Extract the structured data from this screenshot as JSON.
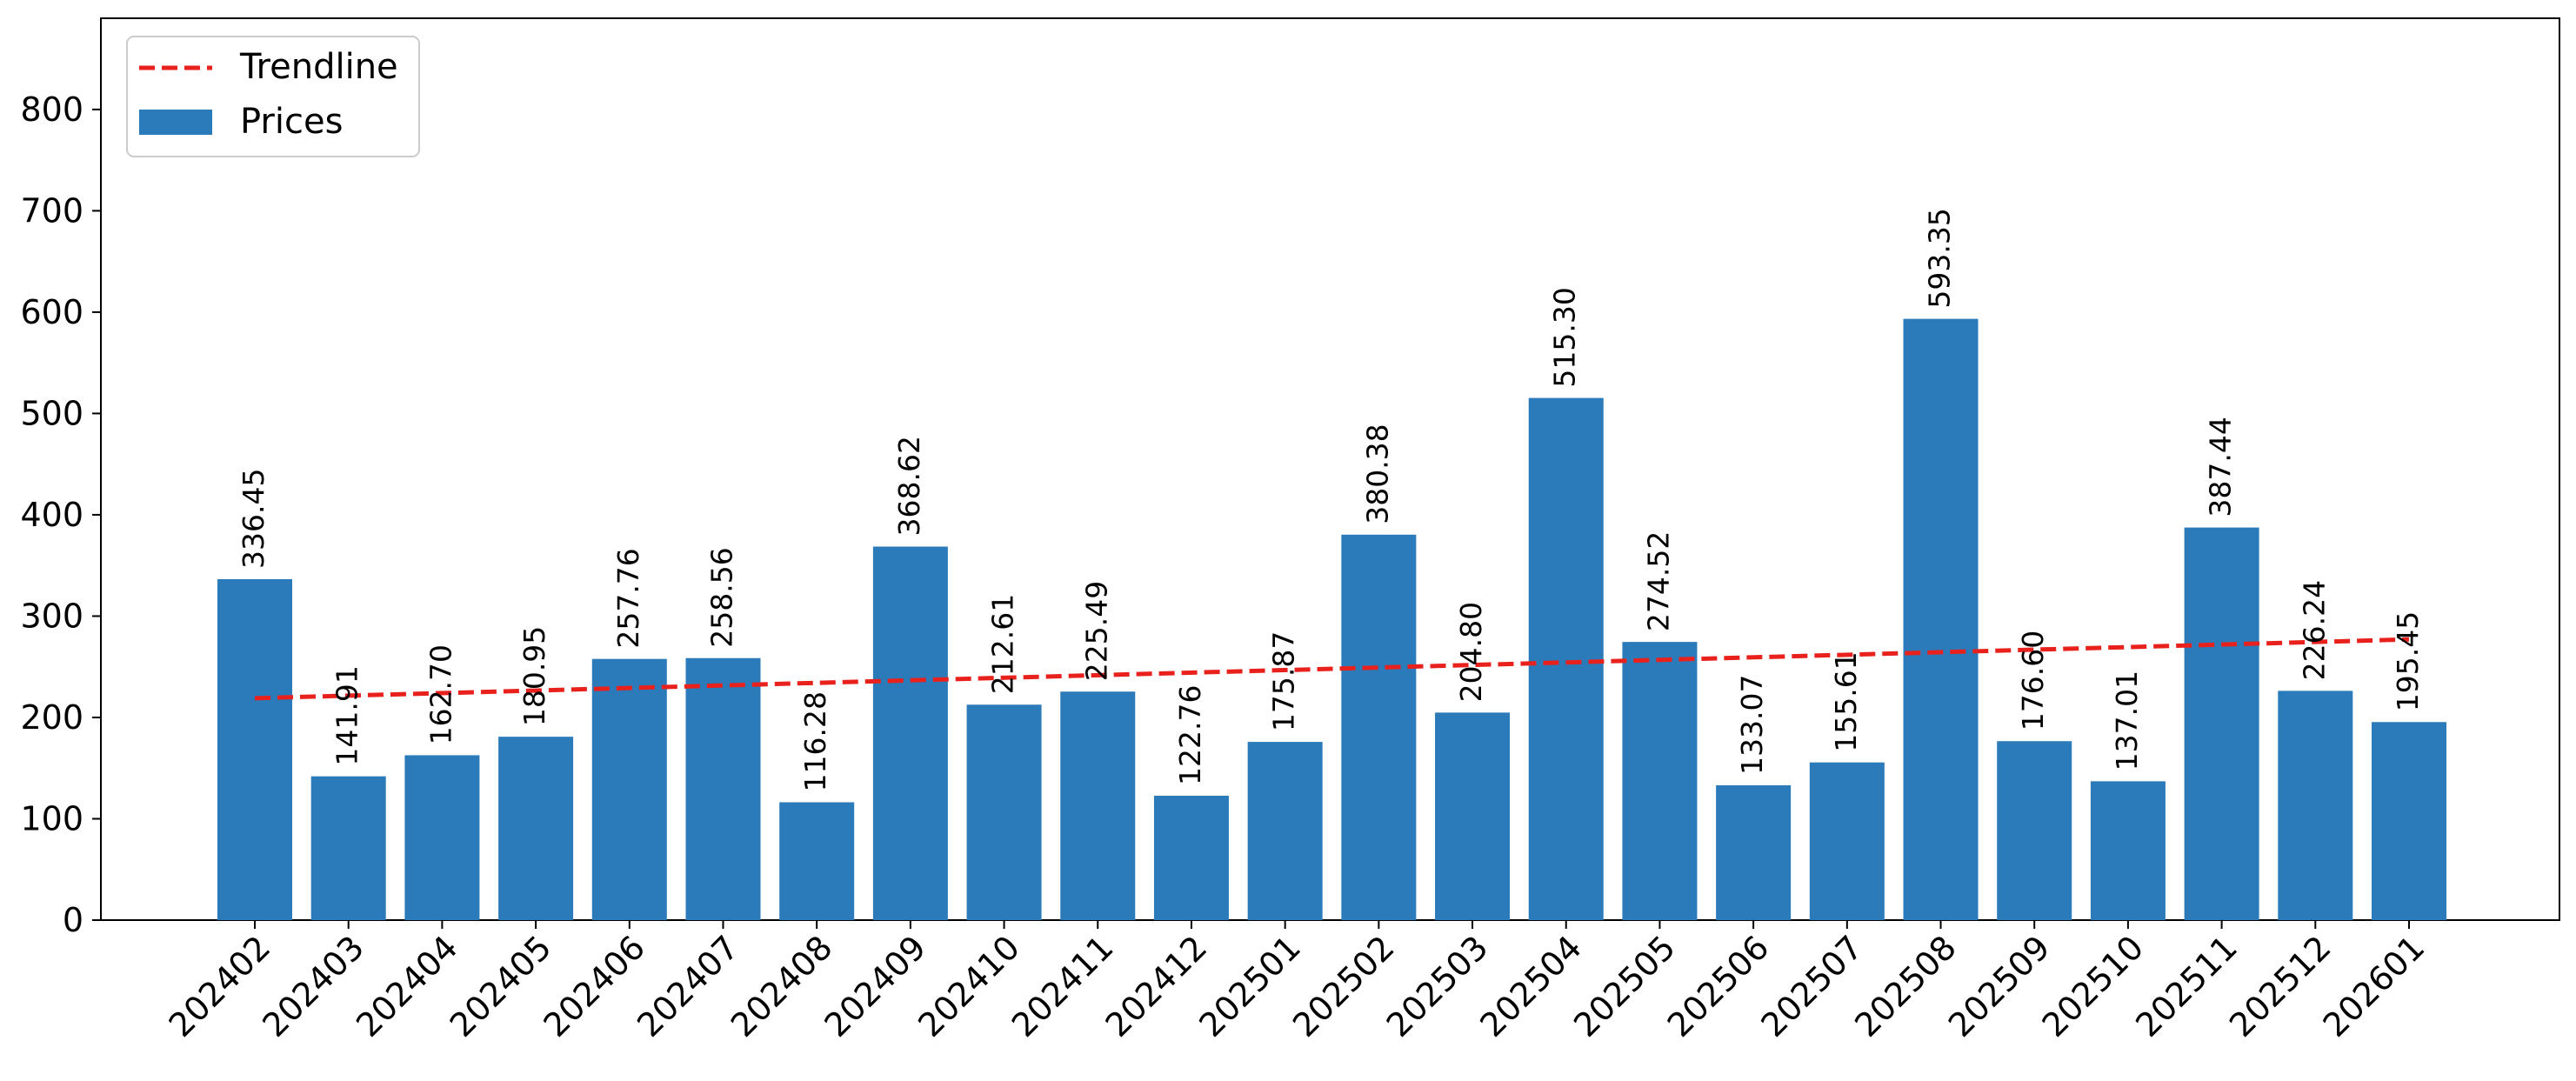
{
  "chart_data": {
    "type": "bar",
    "categories": [
      "202402",
      "202403",
      "202404",
      "202405",
      "202406",
      "202407",
      "202408",
      "202409",
      "202410",
      "202411",
      "202412",
      "202501",
      "202502",
      "202503",
      "202504",
      "202505",
      "202506",
      "202507",
      "202508",
      "202509",
      "202510",
      "202511",
      "202512",
      "202601"
    ],
    "series": [
      {
        "name": "Prices",
        "values": [
          336.45,
          141.91,
          162.7,
          180.95,
          257.76,
          258.56,
          116.28,
          368.62,
          212.61,
          225.49,
          122.76,
          175.87,
          380.38,
          204.8,
          515.3,
          274.52,
          133.07,
          155.61,
          593.35,
          176.6,
          137.01,
          387.44,
          226.24,
          195.45
        ],
        "color": "#2b7bba"
      }
    ],
    "bar_labels": [
      "336.45",
      "141.91",
      "162.70",
      "180.95",
      "257.76",
      "258.56",
      "116.28",
      "368.62",
      "212.61",
      "225.49",
      "122.76",
      "175.87",
      "380.38",
      "204.80",
      "515.30",
      "274.52",
      "133.07",
      "155.61",
      "593.35",
      "176.60",
      "137.01",
      "387.44",
      "226.24",
      "195.45"
    ],
    "trendline": {
      "name": "Trendline",
      "start": 219,
      "end": 277,
      "color": "#e8211d",
      "style": "dashed"
    },
    "ylim": [
      0,
      890
    ],
    "yticks": [
      "0",
      "100",
      "200",
      "300",
      "400",
      "500",
      "600",
      "700",
      "800"
    ],
    "legend": {
      "placement": "top-left",
      "entries": [
        "Trendline",
        "Prices"
      ]
    },
    "grid": false,
    "title": "",
    "xlabel": "",
    "ylabel": ""
  }
}
